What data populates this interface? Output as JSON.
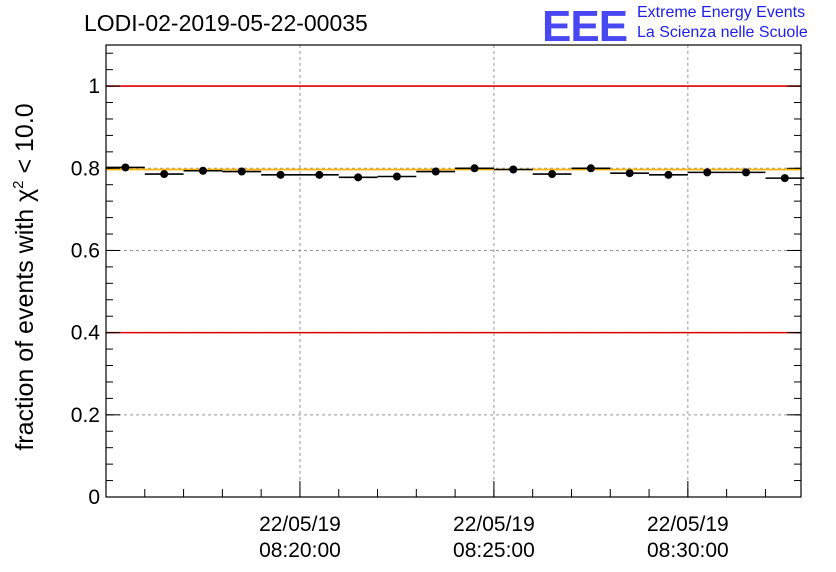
{
  "header": {
    "run_title": "LODI-02-2019-05-22-00035",
    "logo_text": "EEE",
    "logo_line1": "Extreme Energy Events",
    "logo_line2": "La Scienza nelle Scuole"
  },
  "colors": {
    "reference_lines": "#e00000",
    "mean_line": "#ffb400",
    "logo": "#1e1ef0",
    "points": "#000000"
  },
  "chart_data": {
    "type": "scatter",
    "title": "LODI-02-2019-05-22-00035",
    "xlabel": "",
    "ylabel": "fraction of events with χ² < 10.0",
    "ylabel_parts": {
      "prefix": "fraction of events with ",
      "symbol": "χ",
      "sup": "2",
      "suffix": " < 10.0"
    },
    "xlim_minutes": [
      0,
      17.917
    ],
    "ylim": [
      0,
      1.1
    ],
    "y_ticks": [
      0,
      0.2,
      0.4,
      0.6,
      0.8,
      1
    ],
    "y_tick_labels": [
      "0",
      "0.2",
      "0.4",
      "0.6",
      "0.8",
      "1"
    ],
    "x_major_ticks_minutes": [
      5,
      10,
      15
    ],
    "x_tick_labels": [
      {
        "date": "22/05/19",
        "time": "08:20:00"
      },
      {
        "date": "22/05/19",
        "time": "08:25:00"
      },
      {
        "date": "22/05/19",
        "time": "08:30:00"
      }
    ],
    "grid": true,
    "bin_width_minutes": 1,
    "x": [
      0.5,
      1.5,
      2.5,
      3.5,
      4.5,
      5.5,
      6.5,
      7.5,
      8.5,
      9.5,
      10.5,
      11.5,
      12.5,
      13.5,
      14.5,
      15.5,
      16.5,
      17.5
    ],
    "values": [
      0.802,
      0.786,
      0.794,
      0.792,
      0.784,
      0.784,
      0.778,
      0.78,
      0.792,
      0.8,
      0.797,
      0.786,
      0.8,
      0.788,
      0.784,
      0.79,
      0.79,
      0.776
    ],
    "reference_lines": [
      0.4,
      1.0
    ],
    "mean_line": 0.797
  }
}
